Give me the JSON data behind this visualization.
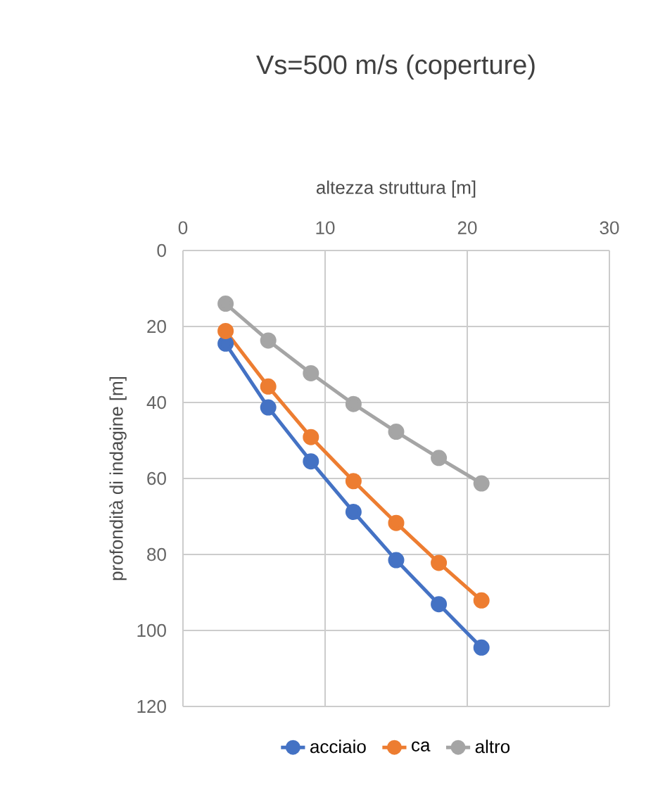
{
  "chart_data": {
    "type": "line",
    "title": "Vs=500 m/s (coperture)",
    "xlabel": "altezza struttura [m]",
    "ylabel": "profondità di indagine [m]",
    "x": [
      3,
      6,
      9,
      12,
      15,
      18,
      21
    ],
    "series": [
      {
        "name": "acciaio",
        "color": "#4472c4",
        "values": [
          24.5,
          41.3,
          55.5,
          68.8,
          81.5,
          93.1,
          104.5
        ]
      },
      {
        "name": "ca",
        "color": "#ed7d31",
        "values": [
          21.2,
          35.8,
          49.1,
          60.7,
          71.7,
          82.2,
          92.1
        ]
      },
      {
        "name": "altro",
        "color": "#a5a5a5",
        "values": [
          14.0,
          23.7,
          32.3,
          40.4,
          47.7,
          54.6,
          61.3
        ]
      }
    ],
    "xlim": [
      0,
      30
    ],
    "xticks": [
      0,
      10,
      20,
      30
    ],
    "ylim": [
      120,
      0
    ],
    "yticks": [
      0,
      20,
      40,
      60,
      80,
      100,
      120
    ],
    "grid": true,
    "legend": "bottom",
    "marker": "circle",
    "line_style": "solid"
  }
}
